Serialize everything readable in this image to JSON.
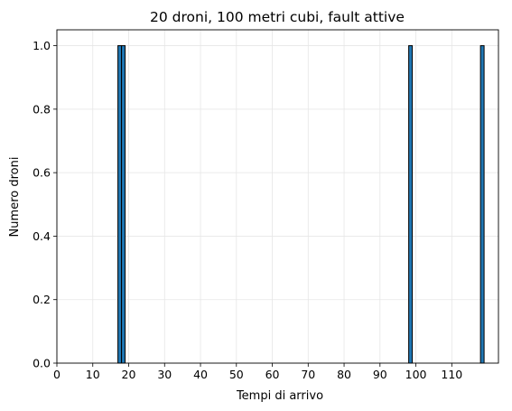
{
  "chart_data": {
    "type": "bar",
    "title": "20 droni, 100 metri cubi, fault attive",
    "xlabel": "Tempi di arrivo",
    "ylabel": "Numero droni",
    "xlim": [
      0,
      123
    ],
    "ylim": [
      0,
      1.05
    ],
    "x_ticks": [
      "0",
      "10",
      "20",
      "30",
      "40",
      "50",
      "60",
      "70",
      "80",
      "90",
      "100",
      "110"
    ],
    "y_ticks": [
      "0.0",
      "0.2",
      "0.4",
      "0.6",
      "0.8",
      "1.0"
    ],
    "bin_width": 1,
    "bins": [
      {
        "start": 17,
        "count": 1
      },
      {
        "start": 18,
        "count": 1
      },
      {
        "start": 98,
        "count": 1
      },
      {
        "start": 118,
        "count": 1
      }
    ],
    "grid": true,
    "legend": "none",
    "bar_color": "#1f77b4",
    "bar_edge_color": "#000000",
    "grid_color": "#e6e6e6"
  }
}
